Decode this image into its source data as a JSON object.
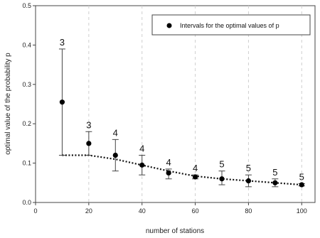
{
  "chart_data": {
    "type": "scatter",
    "xlabel": "number of stations",
    "ylabel": "optimal value of the probability p",
    "xlim": [
      0,
      105
    ],
    "ylim": [
      0,
      0.5
    ],
    "xticks": [
      "0",
      "20",
      "40",
      "60",
      "80",
      "100"
    ],
    "yticks": [
      "0.0",
      "0.1",
      "0.2",
      "0.3",
      "0.4",
      "0.5"
    ],
    "grid": "vertical-dashed",
    "legend": {
      "label": "Intervals for the optimal values of p",
      "placement": "top-right"
    },
    "series": [
      {
        "name": "Intervals for the optimal values of p",
        "x": [
          10,
          20,
          30,
          40,
          50,
          60,
          70,
          80,
          90,
          100
        ],
        "y": [
          0.255,
          0.15,
          0.12,
          0.095,
          0.075,
          0.065,
          0.06,
          0.055,
          0.05,
          0.045
        ],
        "upper": [
          0.39,
          0.18,
          0.16,
          0.12,
          0.085,
          0.07,
          0.08,
          0.07,
          0.06,
          0.048
        ],
        "lower": [
          0.12,
          0.12,
          0.08,
          0.07,
          0.06,
          0.06,
          0.045,
          0.04,
          0.04,
          0.042
        ],
        "labels": [
          "3",
          "3",
          "4",
          "4",
          "4",
          "4",
          "5",
          "5",
          "5",
          "5"
        ]
      }
    ],
    "lower_bound_line": {
      "x": [
        10,
        20,
        30,
        40,
        50,
        60,
        70,
        80,
        90,
        100
      ],
      "y": [
        0.12,
        0.12,
        0.11,
        0.095,
        0.08,
        0.067,
        0.06,
        0.055,
        0.05,
        0.045
      ]
    }
  }
}
